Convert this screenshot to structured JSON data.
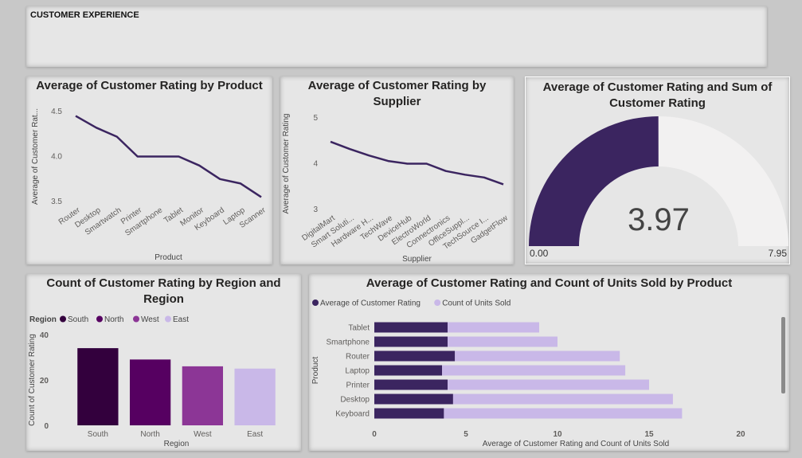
{
  "header": {
    "title": "CUSTOMER EXPERIENCE"
  },
  "colors": {
    "primary": "#3b2560",
    "line": "#3b2560",
    "gauge_fill": "#3b2560",
    "gauge_bg": "#f2f1f1",
    "units_bar": "#c9b8e8",
    "region_south": "#33003d",
    "region_north": "#560061",
    "region_west": "#8c3696",
    "region_east": "#c9b8e8"
  },
  "chart_data": [
    {
      "id": "rating_by_product",
      "type": "line",
      "title": "Average of Customer Rating by Product",
      "xlabel": "Product",
      "ylabel": "Average of Customer Rat...",
      "ylim": [
        3.5,
        4.5
      ],
      "yticks": [
        "4.5",
        "4.0",
        "3.5"
      ],
      "categories": [
        "Router",
        "Desktop",
        "Smartwatch",
        "Printer",
        "Smartphone",
        "Tablet",
        "Monitor",
        "Keyboard",
        "Laptop",
        "Scanner"
      ],
      "values": [
        4.45,
        4.32,
        4.22,
        4.0,
        4.0,
        4.0,
        3.9,
        3.75,
        3.7,
        3.55
      ]
    },
    {
      "id": "rating_by_supplier",
      "type": "line",
      "title": "Average of Customer Rating by Supplier",
      "xlabel": "Supplier",
      "ylabel": "Average of Customer Rating",
      "ylim": [
        3,
        5
      ],
      "yticks": [
        "5",
        "4",
        "3"
      ],
      "categories": [
        "DigitalMart",
        "Smart Soluti...",
        "Hardware H...",
        "TechWave",
        "DeviceHub",
        "ElectroWorld",
        "Connectronics",
        "OfficeSuppl...",
        "TechSource I...",
        "GadgetFlow"
      ],
      "values": [
        4.48,
        4.32,
        4.18,
        4.06,
        4.0,
        4.0,
        3.84,
        3.76,
        3.7,
        3.55
      ]
    },
    {
      "id": "rating_gauge",
      "type": "gauge",
      "title": "Average of Customer Rating and Sum of Customer Rating",
      "value": 3.97,
      "value_label": "3.97",
      "min": 0,
      "min_label": "0.00",
      "max": 7.95,
      "max_label": "7.95"
    },
    {
      "id": "count_by_region",
      "type": "bar",
      "title": "Count of Customer Rating by Region and Region",
      "xlabel": "Region",
      "ylabel": "Count of Customer Rating",
      "ylim": [
        0,
        40
      ],
      "yticks": [
        "40",
        "20",
        "0"
      ],
      "legend_title": "Region",
      "categories": [
        "South",
        "North",
        "West",
        "East"
      ],
      "values": [
        34,
        29,
        26,
        25
      ]
    },
    {
      "id": "rating_units_by_product",
      "type": "bar",
      "orientation": "horizontal",
      "stacked": true,
      "title": "Average of Customer Rating and Count of Units Sold by Product",
      "xlabel": "Average of Customer Rating and Count of Units Sold",
      "ylabel": "Product",
      "xlim": [
        0,
        20
      ],
      "xticks": [
        "0",
        "5",
        "10",
        "15",
        "20"
      ],
      "categories": [
        "Tablet",
        "Smartphone",
        "Router",
        "Laptop",
        "Printer",
        "Desktop",
        "Keyboard"
      ],
      "series": [
        {
          "name": "Average of Customer Rating",
          "values": [
            4.0,
            4.0,
            4.4,
            3.7,
            4.0,
            4.3,
            3.8
          ]
        },
        {
          "name": "Count of Units Sold",
          "values": [
            5.0,
            6.0,
            9.0,
            10.0,
            11.0,
            12.0,
            13.0
          ]
        }
      ]
    }
  ]
}
